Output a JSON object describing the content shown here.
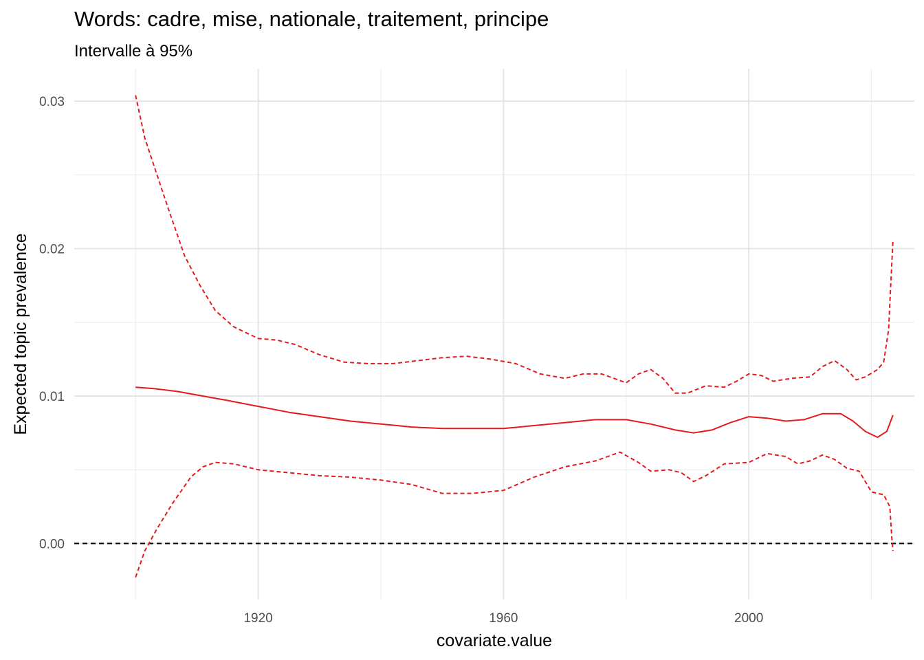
{
  "title": "Words: cadre, mise, nationale, traitement, principe",
  "subtitle": "Intervalle à 95%",
  "chart_data": {
    "type": "line",
    "xlabel": "covariate.value",
    "ylabel": "Expected topic prevalence",
    "xlim": [
      1890,
      2027
    ],
    "ylim": [
      -0.0038,
      0.0322
    ],
    "x_ticks": [
      1920,
      1960,
      2000
    ],
    "x_tick_labels": [
      "1920",
      "1960",
      "2000"
    ],
    "y_ticks": [
      0.0,
      0.01,
      0.02,
      0.03
    ],
    "y_tick_labels": [
      "0.00",
      "0.01",
      "0.02",
      "0.03"
    ],
    "grid": true,
    "reference_line": {
      "y": 0,
      "style": "dashed",
      "color": "#000000"
    },
    "series": [
      {
        "style": "solid",
        "color": "#e41a1c",
        "points": [
          [
            1900,
            0.0106
          ],
          [
            1903,
            0.0105
          ],
          [
            1907,
            0.0103
          ],
          [
            1911,
            0.01
          ],
          [
            1915,
            0.0097
          ],
          [
            1920,
            0.0093
          ],
          [
            1925,
            0.0089
          ],
          [
            1930,
            0.0086
          ],
          [
            1935,
            0.0083
          ],
          [
            1940,
            0.0081
          ],
          [
            1945,
            0.0079
          ],
          [
            1950,
            0.0078
          ],
          [
            1955,
            0.0078
          ],
          [
            1960,
            0.0078
          ],
          [
            1965,
            0.008
          ],
          [
            1970,
            0.0082
          ],
          [
            1975,
            0.0084
          ],
          [
            1980,
            0.0084
          ],
          [
            1984,
            0.0081
          ],
          [
            1988,
            0.0077
          ],
          [
            1991,
            0.0075
          ],
          [
            1994,
            0.0077
          ],
          [
            1997,
            0.0082
          ],
          [
            2000,
            0.0086
          ],
          [
            2003,
            0.0085
          ],
          [
            2006,
            0.0083
          ],
          [
            2009,
            0.0084
          ],
          [
            2012,
            0.0088
          ],
          [
            2015,
            0.0088
          ],
          [
            2017,
            0.0083
          ],
          [
            2019,
            0.0076
          ],
          [
            2021,
            0.0072
          ],
          [
            2022.5,
            0.0076
          ],
          [
            2023.5,
            0.0087
          ]
        ]
      },
      {
        "style": "dashed",
        "color": "#e41a1c",
        "points": [
          [
            1900,
            0.0304
          ],
          [
            1901.5,
            0.0275
          ],
          [
            1903.5,
            0.025
          ],
          [
            1905.5,
            0.0225
          ],
          [
            1908,
            0.0195
          ],
          [
            1910.5,
            0.0175
          ],
          [
            1913,
            0.0158
          ],
          [
            1916,
            0.0147
          ],
          [
            1920,
            0.0139
          ],
          [
            1923,
            0.0138
          ],
          [
            1926,
            0.0135
          ],
          [
            1930,
            0.0128
          ],
          [
            1934,
            0.0123
          ],
          [
            1938,
            0.0122
          ],
          [
            1942,
            0.0122
          ],
          [
            1946,
            0.0124
          ],
          [
            1950,
            0.0126
          ],
          [
            1954,
            0.0127
          ],
          [
            1958,
            0.0125
          ],
          [
            1962,
            0.0122
          ],
          [
            1966,
            0.0115
          ],
          [
            1970,
            0.0112
          ],
          [
            1973,
            0.0115
          ],
          [
            1976,
            0.0115
          ],
          [
            1978,
            0.0112
          ],
          [
            1980,
            0.0109
          ],
          [
            1982,
            0.0115
          ],
          [
            1984,
            0.0118
          ],
          [
            1986,
            0.0112
          ],
          [
            1988,
            0.0102
          ],
          [
            1990,
            0.0102
          ],
          [
            1993,
            0.0107
          ],
          [
            1996,
            0.0106
          ],
          [
            1998,
            0.011
          ],
          [
            2000,
            0.0115
          ],
          [
            2002,
            0.0114
          ],
          [
            2004,
            0.011
          ],
          [
            2007,
            0.0112
          ],
          [
            2010,
            0.0113
          ],
          [
            2012,
            0.012
          ],
          [
            2014,
            0.0124
          ],
          [
            2016,
            0.0118
          ],
          [
            2017.5,
            0.0111
          ],
          [
            2019,
            0.0113
          ],
          [
            2021,
            0.0118
          ],
          [
            2022,
            0.0123
          ],
          [
            2022.8,
            0.0145
          ],
          [
            2023.2,
            0.018
          ],
          [
            2023.5,
            0.0205
          ]
        ]
      },
      {
        "style": "dashed",
        "color": "#e41a1c",
        "points": [
          [
            1900,
            -0.0023
          ],
          [
            1901.5,
            -0.0005
          ],
          [
            1903.5,
            0.001
          ],
          [
            1906,
            0.0027
          ],
          [
            1909,
            0.0045
          ],
          [
            1911,
            0.0052
          ],
          [
            1913,
            0.0055
          ],
          [
            1916,
            0.0054
          ],
          [
            1920,
            0.005
          ],
          [
            1925,
            0.0048
          ],
          [
            1930,
            0.0046
          ],
          [
            1935,
            0.0045
          ],
          [
            1940,
            0.0043
          ],
          [
            1945,
            0.004
          ],
          [
            1950,
            0.0034
          ],
          [
            1955,
            0.0034
          ],
          [
            1960,
            0.0036
          ],
          [
            1965,
            0.0045
          ],
          [
            1970,
            0.0052
          ],
          [
            1975,
            0.0056
          ],
          [
            1979,
            0.0062
          ],
          [
            1982,
            0.0055
          ],
          [
            1984,
            0.0049
          ],
          [
            1987,
            0.005
          ],
          [
            1989,
            0.0048
          ],
          [
            1991,
            0.0042
          ],
          [
            1993,
            0.0046
          ],
          [
            1996,
            0.0054
          ],
          [
            2000,
            0.0055
          ],
          [
            2003,
            0.0061
          ],
          [
            2006,
            0.0059
          ],
          [
            2008,
            0.0054
          ],
          [
            2010,
            0.0056
          ],
          [
            2012,
            0.006
          ],
          [
            2014,
            0.0057
          ],
          [
            2016,
            0.0051
          ],
          [
            2018,
            0.0049
          ],
          [
            2020,
            0.0035
          ],
          [
            2022,
            0.0033
          ],
          [
            2023,
            0.0025
          ],
          [
            2023.3,
            0.0005
          ],
          [
            2023.5,
            -0.0005
          ]
        ]
      }
    ]
  }
}
